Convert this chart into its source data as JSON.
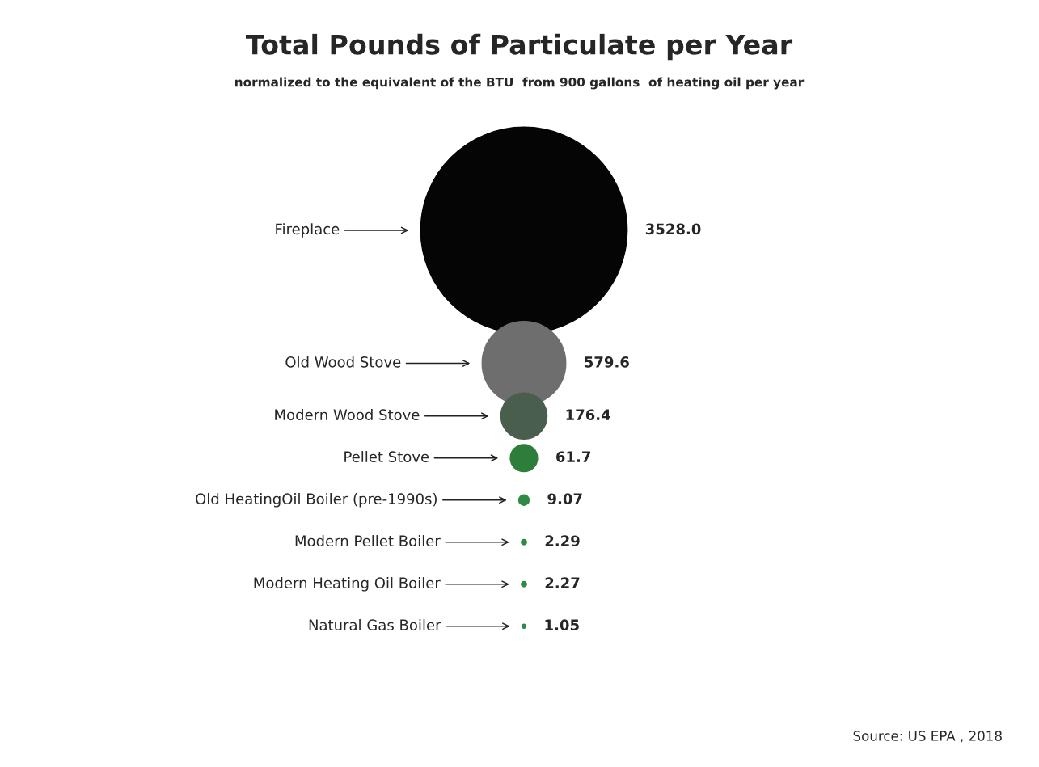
{
  "chart_data": {
    "type": "other",
    "title": "Total Pounds of Particulate per Year",
    "subtitle": "normalized to the equivalent of the BTU  from 900 gallons  of heating oil per year",
    "categories": [
      "Fireplace",
      "Old Wood Stove",
      "Modern Wood Stove",
      "Pellet Stove",
      "Old HeatingOil Boiler (pre-1990s)",
      "Modern Pellet Boiler",
      "Modern Heating Oil Boiler",
      "Natural Gas Boiler"
    ],
    "values": [
      3528.0,
      579.6,
      176.4,
      61.7,
      9.07,
      2.29,
      2.27,
      1.05
    ],
    "colors": [
      "#050505",
      "#6e6e6e",
      "#4a5e4e",
      "#2e7d3a",
      "#2e8b46",
      "#2e8b46",
      "#2e8b46",
      "#2e8b46"
    ],
    "value_labels": [
      "3528.0",
      "579.6",
      "176.4",
      "61.7",
      "9.07",
      "2.29",
      "2.27",
      "1.05"
    ],
    "annotations": [
      "Source: US EPA , 2018"
    ]
  }
}
